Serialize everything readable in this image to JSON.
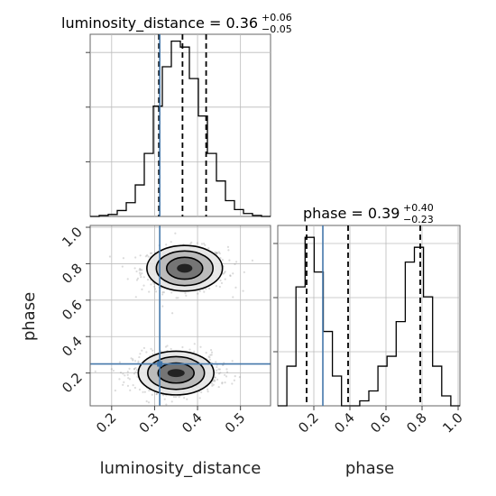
{
  "chart_data": {
    "type": "corner",
    "parameters": [
      "luminosity_distance",
      "phase"
    ],
    "truths": {
      "luminosity_distance": 0.312,
      "phase": 0.25
    },
    "titles": {
      "luminosity_distance": {
        "base": "luminosity_distance = 0.36",
        "plus": "+0.06",
        "minus": "−0.05"
      },
      "phase": {
        "base": "phase = 0.39",
        "plus": "+0.40",
        "minus": "−0.23"
      }
    },
    "quantiles": {
      "luminosity_distance": [
        0.31,
        0.365,
        0.42
      ],
      "phase": [
        0.16,
        0.39,
        0.79
      ]
    },
    "axis_labels": {
      "x_left": "luminosity_distance",
      "x_right": "phase",
      "y_left": "phase"
    },
    "xlim": {
      "luminosity_distance": [
        0.15,
        0.57
      ],
      "phase": [
        0.0,
        1.01
      ]
    },
    "ylim": {
      "phase": [
        0.02,
        1.01
      ]
    },
    "ticks": {
      "luminosity_distance": [
        0.2,
        0.3,
        0.4,
        0.5
      ],
      "phase": [
        0.2,
        0.4,
        0.6,
        0.8,
        1.0
      ],
      "phase_left": [
        0.2,
        0.4,
        0.6,
        0.8,
        1.0
      ]
    },
    "tick_labels": {
      "luminosity_distance": [
        "0.2",
        "0.3",
        "0.4",
        "0.5"
      ],
      "phase": [
        "0.2",
        "0.4",
        "0.6",
        "0.8",
        "1.0"
      ],
      "phase_left": [
        "0.2",
        "0.4",
        "0.6",
        "0.8",
        "1.0"
      ]
    },
    "hist_luminosity_distance": {
      "edges": [
        0.15,
        0.171,
        0.192,
        0.213,
        0.234,
        0.255,
        0.276,
        0.297,
        0.318,
        0.339,
        0.36,
        0.381,
        0.402,
        0.423,
        0.444,
        0.465,
        0.486,
        0.507,
        0.528,
        0.549,
        0.57
      ],
      "counts": [
        0,
        1,
        2,
        6,
        14,
        32,
        64,
        112,
        152,
        178,
        172,
        140,
        102,
        64,
        36,
        16,
        7,
        3,
        1,
        0
      ],
      "ymax": 185
    },
    "hist_phase": {
      "edges": [
        0.0,
        0.0505,
        0.101,
        0.1515,
        0.202,
        0.2525,
        0.303,
        0.3535,
        0.404,
        0.4545,
        0.505,
        0.5555,
        0.606,
        0.6565,
        0.707,
        0.7575,
        0.808,
        0.8585,
        0.909,
        0.9595,
        1.01
      ],
      "counts": [
        0,
        40,
        120,
        170,
        135,
        75,
        30,
        0,
        0,
        5,
        15,
        40,
        50,
        85,
        145,
        160,
        110,
        40,
        10,
        0
      ],
      "ymax": 182
    },
    "scatter_blobs": [
      {
        "cx": 0.37,
        "cy": 0.77,
        "sx": 0.05,
        "sy": 0.06,
        "n": 650
      },
      {
        "cx": 0.35,
        "cy": 0.2,
        "sx": 0.05,
        "sy": 0.055,
        "n": 750
      }
    ],
    "contours": [
      {
        "cx": 0.37,
        "cy": 0.775,
        "rx": [
          0.088,
          0.066,
          0.042,
          0.018
        ],
        "ry": [
          0.125,
          0.095,
          0.06,
          0.024
        ]
      },
      {
        "cx": 0.35,
        "cy": 0.2,
        "rx": [
          0.088,
          0.066,
          0.042,
          0.02
        ],
        "ry": [
          0.12,
          0.09,
          0.055,
          0.022
        ]
      }
    ],
    "fill_levels": [
      "#e6e6e6",
      "#b6b6b6",
      "#6e6e6e",
      "#1a1a1a"
    ],
    "colors": {
      "truth": "#4477aa",
      "hist": "#000000",
      "grid": "#bbbbbb",
      "axes": "#666666",
      "points": "#999999"
    },
    "grid": true
  }
}
